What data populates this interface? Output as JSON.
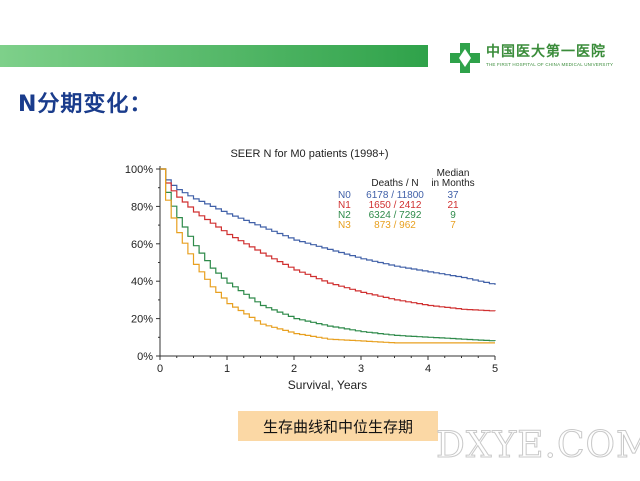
{
  "slide": {
    "title": "N分期变化：",
    "caption": "生存曲线和中位生存期",
    "watermark": "DXYE.COM"
  },
  "logo": {
    "cn": "中国医大第一医院",
    "en": "THE FIRST HOSPITAL OF CHINA MEDICAL UNIVERSITY",
    "colors": {
      "green": "#3a8c3a",
      "cross": "#2fa24a"
    }
  },
  "chart_data": {
    "type": "line",
    "title": "SEER N for M0 patients (1998+)",
    "xlabel": "Survival, Years",
    "ylabel": "",
    "xlim": [
      0,
      5
    ],
    "ylim": [
      0,
      100
    ],
    "xticks": [
      "0",
      "1",
      "2",
      "3",
      "4",
      "5"
    ],
    "yticks": [
      "0%",
      "20%",
      "40%",
      "60%",
      "80%",
      "100%"
    ],
    "legend_header": {
      "deaths_n": "Deaths / N",
      "median": "Median\nin Months"
    },
    "legend_position": "top-right",
    "series": [
      {
        "name": "N0",
        "deaths_n": "6178 / 11800",
        "median": "37",
        "color": "#4060a8",
        "x": [
          0,
          0.1,
          0.25,
          0.5,
          0.75,
          1,
          1.5,
          2,
          2.5,
          3,
          3.5,
          4,
          4.5,
          5
        ],
        "y": [
          100,
          93,
          89,
          84,
          80,
          76,
          69,
          62,
          57,
          52,
          48,
          45,
          42,
          38
        ]
      },
      {
        "name": "N1",
        "deaths_n": "1650 / 2412",
        "median": "21",
        "color": "#d03030",
        "x": [
          0,
          0.1,
          0.25,
          0.5,
          0.75,
          1,
          1.5,
          2,
          2.5,
          3,
          3.5,
          4,
          4.5,
          5
        ],
        "y": [
          100,
          91,
          85,
          77,
          71,
          65,
          55,
          46,
          39,
          34,
          30,
          27,
          25,
          24
        ]
      },
      {
        "name": "N2",
        "deaths_n": "6324 / 7292",
        "median": "9",
        "color": "#2e8a4a",
        "x": [
          0,
          0.1,
          0.25,
          0.5,
          0.75,
          1,
          1.5,
          2,
          2.5,
          3,
          3.5,
          4,
          4.5,
          5
        ],
        "y": [
          100,
          85,
          74,
          59,
          47,
          39,
          27,
          20,
          16,
          13,
          11,
          10,
          9,
          8
        ]
      },
      {
        "name": "N3",
        "deaths_n": "873 / 962",
        "median": "7",
        "color": "#e8a020",
        "x": [
          0,
          0.1,
          0.25,
          0.5,
          0.75,
          1,
          1.5,
          2,
          2.5,
          3,
          3.5,
          4,
          4.5,
          5
        ],
        "y": [
          100,
          80,
          66,
          49,
          37,
          28,
          17,
          12,
          9,
          8,
          7,
          7,
          7,
          7
        ]
      }
    ]
  }
}
